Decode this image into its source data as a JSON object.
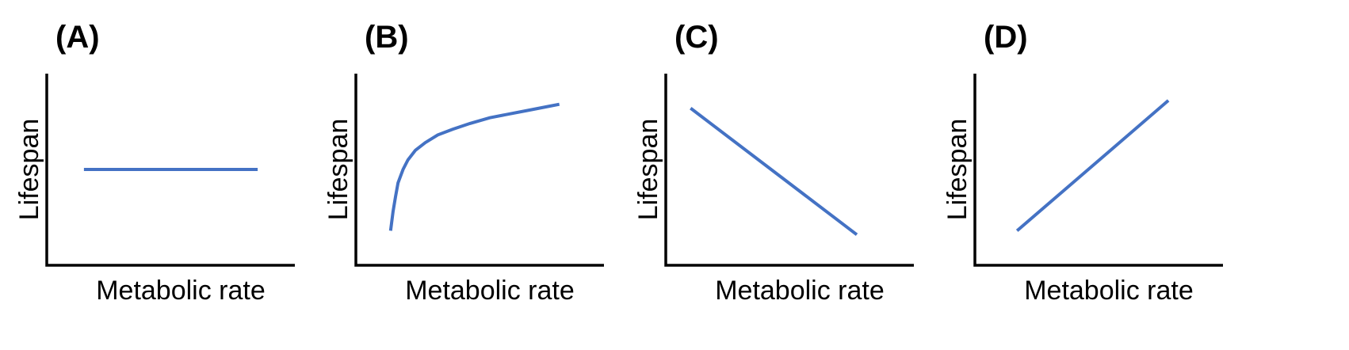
{
  "chart_data": [
    {
      "type": "line",
      "panel_label": "(A)",
      "xlabel": "Metabolic rate",
      "ylabel": "Lifespan",
      "xlim": [
        0,
        1
      ],
      "ylim": [
        0,
        1
      ],
      "color": "#4472c4",
      "series": [
        {
          "name": "Lifespan",
          "x": [
            0.15,
            0.85
          ],
          "y": [
            0.5,
            0.5
          ]
        }
      ]
    },
    {
      "type": "line",
      "panel_label": "(B)",
      "xlabel": "Metabolic rate",
      "ylabel": "Lifespan",
      "xlim": [
        0,
        1
      ],
      "ylim": [
        0,
        1
      ],
      "color": "#4472c4",
      "series": [
        {
          "name": "Lifespan",
          "x": [
            0.14,
            0.15,
            0.16,
            0.17,
            0.19,
            0.21,
            0.24,
            0.28,
            0.33,
            0.39,
            0.46,
            0.54,
            0.62,
            0.7,
            0.78,
            0.82
          ],
          "y": [
            0.18,
            0.28,
            0.36,
            0.43,
            0.5,
            0.55,
            0.6,
            0.64,
            0.68,
            0.71,
            0.74,
            0.77,
            0.79,
            0.81,
            0.83,
            0.84
          ]
        }
      ]
    },
    {
      "type": "line",
      "panel_label": "(C)",
      "xlabel": "Metabolic rate",
      "ylabel": "Lifespan",
      "xlim": [
        0,
        1
      ],
      "ylim": [
        0,
        1
      ],
      "color": "#4472c4",
      "series": [
        {
          "name": "Lifespan",
          "x": [
            0.1,
            0.77
          ],
          "y": [
            0.82,
            0.16
          ]
        }
      ]
    },
    {
      "type": "line",
      "panel_label": "(D)",
      "xlabel": "Metabolic rate",
      "ylabel": "Lifespan",
      "xlim": [
        0,
        1
      ],
      "ylim": [
        0,
        1
      ],
      "color": "#4472c4",
      "series": [
        {
          "name": "Lifespan",
          "x": [
            0.17,
            0.78
          ],
          "y": [
            0.18,
            0.86
          ]
        }
      ]
    }
  ]
}
